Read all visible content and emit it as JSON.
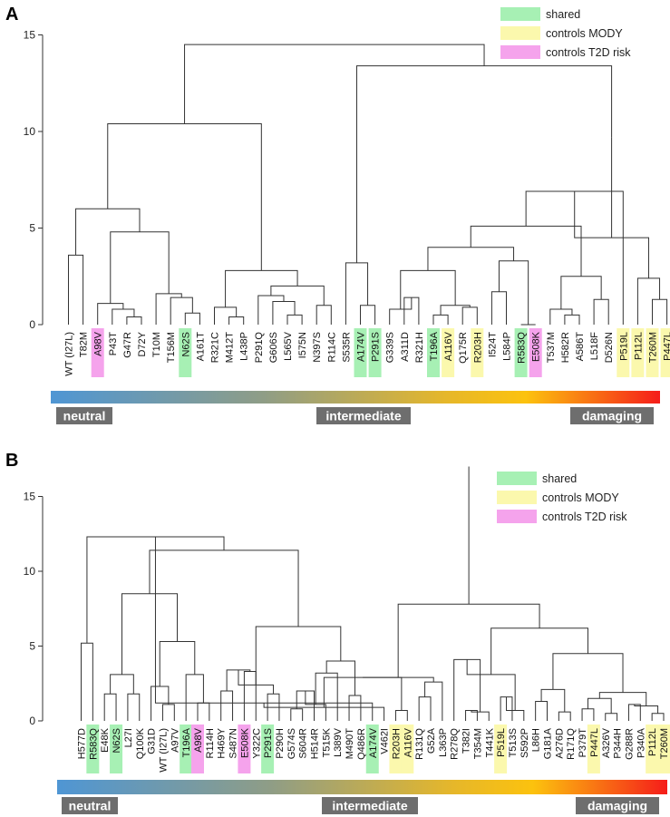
{
  "legend": {
    "entries": [
      {
        "label": "shared",
        "color": "#a7f0b4"
      },
      {
        "label": "controls  MODY",
        "color": "#fbf8ad"
      },
      {
        "label": "controls  T2D risk",
        "color": "#f5a3ec"
      }
    ]
  },
  "scale_bar": {
    "labels": [
      "neutral",
      "intermediate",
      "damaging"
    ],
    "gradient_colors": [
      "#4f96d4",
      "#8f9d86",
      "#e6b72a",
      "#fcc20e",
      "#f51d1a"
    ]
  },
  "chart_data": [
    {
      "type": "dendrogram",
      "panel_label": "A",
      "title": "",
      "xlabel": "",
      "ylabel": "",
      "ylim": [
        0,
        16
      ],
      "y_ticks": [
        0,
        5,
        10,
        15
      ],
      "leaves": [
        {
          "label": "WT (I27L)",
          "group": ""
        },
        {
          "label": "T82M",
          "group": ""
        },
        {
          "label": "A98V",
          "group": "t2d"
        },
        {
          "label": "P43T",
          "group": ""
        },
        {
          "label": "G47R",
          "group": ""
        },
        {
          "label": "D72Y",
          "group": ""
        },
        {
          "label": "T10M",
          "group": ""
        },
        {
          "label": "T156M",
          "group": ""
        },
        {
          "label": "N62S",
          "group": "shared"
        },
        {
          "label": "A161T",
          "group": ""
        },
        {
          "label": "R321C",
          "group": ""
        },
        {
          "label": "M412T",
          "group": ""
        },
        {
          "label": "L438P",
          "group": ""
        },
        {
          "label": "P291Q",
          "group": ""
        },
        {
          "label": "G606S",
          "group": ""
        },
        {
          "label": "L565V",
          "group": ""
        },
        {
          "label": "I575N",
          "group": ""
        },
        {
          "label": "N397S",
          "group": ""
        },
        {
          "label": "R114C",
          "group": ""
        },
        {
          "label": "S535R",
          "group": ""
        },
        {
          "label": "A174V",
          "group": "shared"
        },
        {
          "label": "P291S",
          "group": "shared"
        },
        {
          "label": "G339S",
          "group": ""
        },
        {
          "label": "A311D",
          "group": ""
        },
        {
          "label": "R321H",
          "group": ""
        },
        {
          "label": "T196A",
          "group": "shared"
        },
        {
          "label": "A116V",
          "group": "mody"
        },
        {
          "label": "Q175R",
          "group": ""
        },
        {
          "label": "R203H",
          "group": "mody"
        },
        {
          "label": "I524T",
          "group": ""
        },
        {
          "label": "L584P",
          "group": ""
        },
        {
          "label": "R583Q",
          "group": "shared"
        },
        {
          "label": "E508K",
          "group": "t2d"
        },
        {
          "label": "T537M",
          "group": ""
        },
        {
          "label": "H582R",
          "group": ""
        },
        {
          "label": "A586T",
          "group": ""
        },
        {
          "label": "L518F",
          "group": ""
        },
        {
          "label": "D526N",
          "group": ""
        },
        {
          "label": "P519L",
          "group": "mody"
        },
        {
          "label": "P112L",
          "group": "mody"
        },
        {
          "label": "T260M",
          "group": "mody"
        },
        {
          "label": "P447L",
          "group": "mody"
        }
      ],
      "merges": [
        {
          "a": 0,
          "b": 1,
          "height": 3.6
        },
        {
          "a": 4,
          "b": 5,
          "height": 0.4
        },
        {
          "a": 3,
          "b": 4,
          "height": 0.8
        },
        {
          "a": 2,
          "b": 3,
          "height": 1.1
        },
        {
          "a": 8,
          "b": 9,
          "height": 0.6
        },
        {
          "a": 7,
          "b": 8,
          "height": 1.4
        },
        {
          "a": 6,
          "b": 7,
          "height": 1.6
        },
        {
          "a": 2,
          "b": 6,
          "height": 4.8
        },
        {
          "a": 0,
          "b": 2,
          "height": 6.0
        },
        {
          "a": 11,
          "b": 12,
          "height": 0.4
        },
        {
          "a": 10,
          "b": 11,
          "height": 0.9
        },
        {
          "a": 15,
          "b": 16,
          "height": 0.5
        },
        {
          "a": 14,
          "b": 15,
          "height": 1.2
        },
        {
          "a": 13,
          "b": 14,
          "height": 1.5
        },
        {
          "a": 17,
          "b": 18,
          "height": 1.0
        },
        {
          "a": 13,
          "b": 17,
          "height": 2.0
        },
        {
          "a": 10,
          "b": 13,
          "height": 2.8
        },
        {
          "a": 0,
          "b": 10,
          "height": 10.4
        },
        {
          "a": 20,
          "b": 21,
          "height": 1.0
        },
        {
          "a": 19,
          "b": 20,
          "height": 3.2
        },
        {
          "a": 23,
          "b": 24,
          "height": 1.4
        },
        {
          "a": 22,
          "b": 23,
          "height": 0.8
        },
        {
          "a": 25,
          "b": 26,
          "height": 0.5
        },
        {
          "a": 27,
          "b": 28,
          "height": 0.9
        },
        {
          "a": 25,
          "b": 27,
          "height": 1.0
        },
        {
          "a": 22,
          "b": 25,
          "height": 2.8
        },
        {
          "a": 29,
          "b": 30,
          "height": 1.7
        },
        {
          "a": 31,
          "b": 32,
          "height": 0.0
        },
        {
          "a": 29,
          "b": 31,
          "height": 3.3
        },
        {
          "a": 22,
          "b": 29,
          "height": 4.0
        },
        {
          "a": 34,
          "b": 35,
          "height": 0.5
        },
        {
          "a": 33,
          "b": 34,
          "height": 0.8
        },
        {
          "a": 36,
          "b": 37,
          "height": 1.3
        },
        {
          "a": 33,
          "b": 36,
          "height": 2.5
        },
        {
          "a": 22,
          "b": 33,
          "height": 5.1
        },
        {
          "a": 22,
          "b": 38,
          "height": 6.9
        },
        {
          "a": 40,
          "b": 41,
          "height": 1.3
        },
        {
          "a": 39,
          "b": 40,
          "height": 2.4
        },
        {
          "a": 38,
          "b": 39,
          "height": 4.5
        },
        {
          "a": 22,
          "b": 38,
          "height": 9.7
        },
        {
          "a": 19,
          "b": 22,
          "height": 13.4
        },
        {
          "a": 0,
          "b": 19,
          "height": 14.5
        }
      ]
    },
    {
      "type": "dendrogram",
      "panel_label": "B",
      "title": "",
      "xlabel": "",
      "ylabel": "",
      "ylim": [
        0,
        17
      ],
      "y_ticks": [
        0,
        5,
        10,
        15
      ],
      "leaves": [
        {
          "label": "H577D",
          "group": ""
        },
        {
          "label": "R583Q",
          "group": "shared"
        },
        {
          "label": "E48K",
          "group": ""
        },
        {
          "label": "N62S",
          "group": "shared"
        },
        {
          "label": "L27I",
          "group": ""
        },
        {
          "label": "Q100K",
          "group": ""
        },
        {
          "label": "G31D",
          "group": ""
        },
        {
          "label": "WT (I27L)",
          "group": ""
        },
        {
          "label": "A97V",
          "group": ""
        },
        {
          "label": "T196A",
          "group": "shared"
        },
        {
          "label": "A98V",
          "group": "t2d"
        },
        {
          "label": "R114H",
          "group": ""
        },
        {
          "label": "H469Y",
          "group": ""
        },
        {
          "label": "S487N",
          "group": ""
        },
        {
          "label": "E508K",
          "group": "t2d"
        },
        {
          "label": "Y322C",
          "group": ""
        },
        {
          "label": "P291S",
          "group": "shared"
        },
        {
          "label": "P290H",
          "group": ""
        },
        {
          "label": "G574S",
          "group": ""
        },
        {
          "label": "S604R",
          "group": ""
        },
        {
          "label": "H514R",
          "group": ""
        },
        {
          "label": "T515K",
          "group": ""
        },
        {
          "label": "L389V",
          "group": ""
        },
        {
          "label": "M490T",
          "group": ""
        },
        {
          "label": "Q486R",
          "group": ""
        },
        {
          "label": "A174V",
          "group": "shared"
        },
        {
          "label": "V462I",
          "group": ""
        },
        {
          "label": "R203H",
          "group": "mody"
        },
        {
          "label": "A116V",
          "group": "mody"
        },
        {
          "label": "R131Q",
          "group": ""
        },
        {
          "label": "G52A",
          "group": ""
        },
        {
          "label": "L363P",
          "group": ""
        },
        {
          "label": "R278Q",
          "group": ""
        },
        {
          "label": "T382I",
          "group": ""
        },
        {
          "label": "T354M",
          "group": ""
        },
        {
          "label": "T441K",
          "group": ""
        },
        {
          "label": "P519L",
          "group": "mody"
        },
        {
          "label": "T513S",
          "group": ""
        },
        {
          "label": "S592P",
          "group": ""
        },
        {
          "label": "L86H",
          "group": ""
        },
        {
          "label": "G181A",
          "group": ""
        },
        {
          "label": "A276D",
          "group": ""
        },
        {
          "label": "R171Q",
          "group": ""
        },
        {
          "label": "P379T",
          "group": ""
        },
        {
          "label": "P447L",
          "group": "mody"
        },
        {
          "label": "A326V",
          "group": ""
        },
        {
          "label": "P344H",
          "group": ""
        },
        {
          "label": "G288R",
          "group": ""
        },
        {
          "label": "P340A",
          "group": ""
        },
        {
          "label": "P112L",
          "group": "mody"
        },
        {
          "label": "T260M",
          "group": "mody"
        }
      ],
      "merges": [
        {
          "a": 0,
          "b": 1,
          "height": 5.2
        },
        {
          "a": 2,
          "b": 3,
          "height": 1.8
        },
        {
          "a": 4,
          "b": 5,
          "height": 1.8
        },
        {
          "a": 2,
          "b": 4,
          "height": 3.1
        },
        {
          "a": 7,
          "b": 8,
          "height": 1.1
        },
        {
          "a": 6,
          "b": 7,
          "height": 2.3
        },
        {
          "a": 10,
          "b": 11,
          "height": 1.2
        },
        {
          "a": 9,
          "b": 10,
          "height": 3.1
        },
        {
          "a": 6,
          "b": 9,
          "height": 5.3
        },
        {
          "a": 2,
          "b": 6,
          "height": 8.5
        },
        {
          "a": 12,
          "b": 13,
          "height": 2.0
        },
        {
          "a": 14,
          "b": 15,
          "height": 3.3
        },
        {
          "a": 12,
          "b": 14,
          "height": 3.4
        },
        {
          "a": 16,
          "b": 17,
          "height": 1.8
        },
        {
          "a": 12,
          "b": 16,
          "height": 2.4
        },
        {
          "a": 18,
          "b": 19,
          "height": 0.8
        },
        {
          "a": 18,
          "b": 20,
          "height": 2.0
        },
        {
          "a": 20,
          "b": 21,
          "height": 1.1
        },
        {
          "a": 20,
          "b": 22,
          "height": 3.2
        },
        {
          "a": 23,
          "b": 24,
          "height": 1.7
        },
        {
          "a": 18,
          "b": 23,
          "height": 4.0
        },
        {
          "a": 12,
          "b": 18,
          "height": 6.3
        },
        {
          "a": 2,
          "b": 12,
          "height": 11.4
        },
        {
          "a": 0,
          "b": 2,
          "height": 12.3
        },
        {
          "a": 24,
          "b": 25,
          "height": 1.2
        },
        {
          "a": 25,
          "b": 26,
          "height": 0.9
        },
        {
          "a": 27,
          "b": 28,
          "height": 0.7
        },
        {
          "a": 24,
          "b": 27,
          "height": 2.9
        },
        {
          "a": 29,
          "b": 30,
          "height": 1.6
        },
        {
          "a": 29,
          "b": 31,
          "height": 2.6
        },
        {
          "a": 24,
          "b": 29,
          "height": 2.9
        },
        {
          "a": 33,
          "b": 34,
          "height": 0.7
        },
        {
          "a": 34,
          "b": 35,
          "height": 0.6
        },
        {
          "a": 32,
          "b": 33,
          "height": 4.1
        },
        {
          "a": 36,
          "b": 37,
          "height": 1.6
        },
        {
          "a": 37,
          "b": 38,
          "height": 0.7
        },
        {
          "a": 32,
          "b": 36,
          "height": 3.1
        },
        {
          "a": 39,
          "b": 40,
          "height": 1.3
        },
        {
          "a": 41,
          "b": 42,
          "height": 0.6
        },
        {
          "a": 39,
          "b": 41,
          "height": 2.1
        },
        {
          "a": 43,
          "b": 44,
          "height": 0.8
        },
        {
          "a": 45,
          "b": 46,
          "height": 0.5
        },
        {
          "a": 43,
          "b": 45,
          "height": 1.5
        },
        {
          "a": 47,
          "b": 48,
          "height": 1.1
        },
        {
          "a": 49,
          "b": 50,
          "height": 0.5
        },
        {
          "a": 47,
          "b": 49,
          "height": 1.0
        },
        {
          "a": 43,
          "b": 47,
          "height": 1.9
        },
        {
          "a": 39,
          "b": 43,
          "height": 4.5
        },
        {
          "a": 32,
          "b": 39,
          "height": 6.2
        },
        {
          "a": 24,
          "b": 32,
          "height": 7.8
        },
        {
          "a": 0,
          "b": 24,
          "height": 17.0
        }
      ]
    }
  ]
}
